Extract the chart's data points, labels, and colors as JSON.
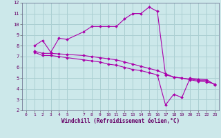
{
  "xlabel": "Windchill (Refroidissement éolien,°C)",
  "background_color": "#cce8ea",
  "grid_color": "#aacfd2",
  "line_color": "#aa00aa",
  "xlim": [
    -0.5,
    23.5
  ],
  "ylim": [
    2,
    12
  ],
  "xticks": [
    0,
    1,
    2,
    3,
    4,
    5,
    7,
    8,
    9,
    10,
    11,
    12,
    13,
    14,
    15,
    16,
    17,
    18,
    19,
    20,
    21,
    22,
    23
  ],
  "yticks": [
    2,
    3,
    4,
    5,
    6,
    7,
    8,
    9,
    10,
    11,
    12
  ],
  "line1_x": [
    1,
    2,
    3,
    4,
    5,
    7,
    8,
    9,
    10,
    11,
    12,
    13,
    14,
    15,
    16,
    17,
    18,
    19,
    20,
    21,
    22,
    23
  ],
  "line1_y": [
    8.0,
    8.5,
    7.4,
    8.7,
    8.6,
    9.3,
    9.8,
    9.8,
    9.8,
    9.8,
    10.5,
    11.0,
    11.0,
    11.6,
    11.2,
    5.3,
    5.1,
    5.0,
    4.9,
    4.8,
    4.8,
    4.4
  ],
  "line2_x": [
    1,
    2,
    3,
    4,
    5,
    7,
    8,
    9,
    10,
    11,
    12,
    13,
    14,
    15,
    16,
    17,
    18,
    19,
    20,
    21,
    22,
    23
  ],
  "line2_y": [
    7.5,
    7.3,
    7.3,
    7.25,
    7.2,
    7.1,
    7.0,
    6.9,
    6.8,
    6.7,
    6.5,
    6.3,
    6.1,
    5.9,
    5.7,
    5.4,
    5.1,
    5.0,
    4.85,
    4.7,
    4.65,
    4.45
  ],
  "line3_x": [
    1,
    2,
    3,
    4,
    5,
    7,
    8,
    9,
    10,
    11,
    12,
    13,
    14,
    15,
    16,
    17,
    18,
    19,
    20,
    21,
    22,
    23
  ],
  "line3_y": [
    7.4,
    7.1,
    7.1,
    7.0,
    6.9,
    6.7,
    6.6,
    6.5,
    6.3,
    6.2,
    6.0,
    5.8,
    5.7,
    5.5,
    5.3,
    2.5,
    3.5,
    3.2,
    5.0,
    4.9,
    4.85,
    4.4
  ]
}
